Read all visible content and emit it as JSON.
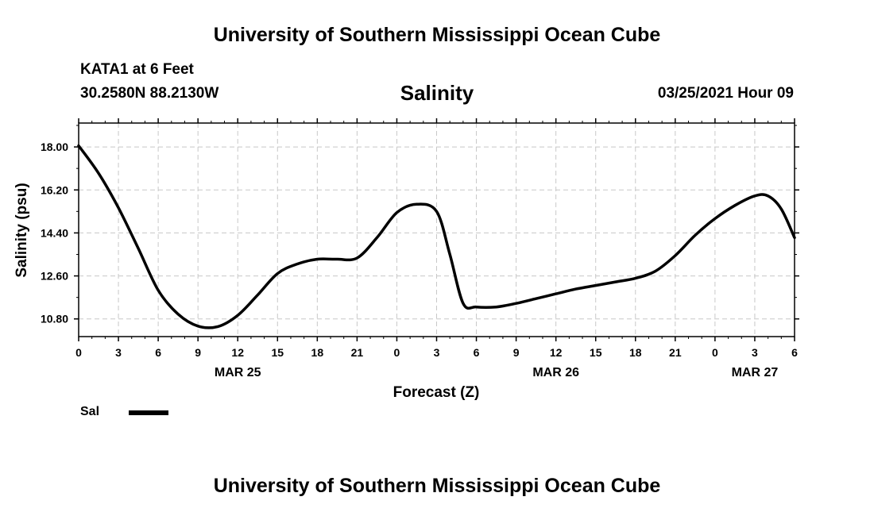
{
  "header": {
    "title": "University of Southern Mississippi Ocean Cube",
    "station": "KATA1 at 6 Feet",
    "coords": "30.2580N 88.2130W",
    "variable": "Salinity",
    "datetime": "03/25/2021 Hour 09"
  },
  "footer": {
    "title": "University of Southern Mississippi Ocean Cube"
  },
  "chart_data": {
    "type": "line",
    "xlabel": "Forecast (Z)",
    "ylabel": "Salinity (psu)",
    "x_range": [
      0,
      54
    ],
    "ylim": [
      10.06,
      19.0
    ],
    "y_ticks": [
      "18.00",
      "16.20",
      "14.40",
      "12.60",
      "10.80"
    ],
    "x_ticks": [
      "0",
      "3",
      "6",
      "9",
      "12",
      "15",
      "18",
      "21",
      "0",
      "3",
      "6",
      "9",
      "12",
      "15",
      "18",
      "21",
      "0",
      "3",
      "6"
    ],
    "day_labels": [
      {
        "label": "MAR 25",
        "hour": 12
      },
      {
        "label": "MAR 26",
        "hour": 36
      },
      {
        "label": "MAR 27",
        "hour": 51
      }
    ],
    "grid": true,
    "legend": {
      "position": "bottom-left",
      "entries": [
        "Sal"
      ]
    },
    "series": [
      {
        "name": "Sal",
        "color": "#000000",
        "x": [
          0,
          1.5,
          3,
          4.5,
          6,
          7.5,
          9,
          10.5,
          12,
          13.5,
          15,
          16.5,
          18,
          19.5,
          21,
          22.5,
          24,
          25.5,
          27,
          28,
          29,
          30,
          31.5,
          33,
          34.5,
          36,
          37.5,
          39,
          40.5,
          42,
          43.5,
          45,
          46.5,
          48,
          49.5,
          51,
          52,
          53,
          54
        ],
        "y": [
          18.05,
          16.9,
          15.45,
          13.75,
          12.0,
          11.0,
          10.5,
          10.48,
          10.95,
          11.8,
          12.7,
          13.1,
          13.3,
          13.3,
          13.35,
          14.2,
          15.25,
          15.6,
          15.3,
          13.5,
          11.45,
          11.3,
          11.3,
          11.45,
          11.65,
          11.85,
          12.05,
          12.2,
          12.35,
          12.5,
          12.8,
          13.45,
          14.3,
          15.0,
          15.55,
          15.95,
          15.95,
          15.4,
          14.2
        ]
      }
    ]
  }
}
